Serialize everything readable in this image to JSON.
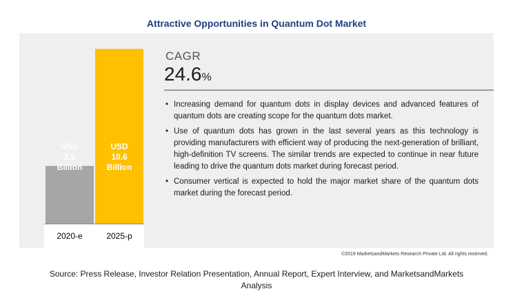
{
  "title": "Attractive Opportunities in Quantum Dot Market",
  "chart_data": {
    "type": "bar",
    "categories": [
      "2020-e",
      "2025-p"
    ],
    "values": [
      3.5,
      10.6
    ],
    "unit": "USD Billion",
    "value_labels": [
      [
        "USD",
        "3.5",
        "Billion"
      ],
      [
        "USD",
        "10.6",
        "Billion"
      ]
    ],
    "colors": [
      "#a6a6a6",
      "#ffc000"
    ],
    "ylim": [
      0,
      10.6
    ],
    "grid": false,
    "legend": "none"
  },
  "cagr": {
    "label": "CAGR",
    "value": "24.6",
    "unit": "%"
  },
  "bullets": [
    "Increasing demand for quantum dots in display devices and advanced features of quantum dots are creating scope for the quantum dots market.",
    "Use of quantum dots has grown in the last several years as this technology is providing manufacturers with efficient way of producing the next-generation of brilliant, high-definition TV screens. The similar trends are expected to continue in near future leading to drive the quantum dots market during forecast period.",
    "Consumer vertical is expected to hold the major market share of the quantum dots market during the forecast period."
  ],
  "copyright": "©2019 MarketsandMarkets Research Private Ltd. All rights reserved.",
  "source": "Source: Press Release, Investor Relation Presentation, Annual Report, Expert Interview, and MarketsandMarkets Analysis"
}
